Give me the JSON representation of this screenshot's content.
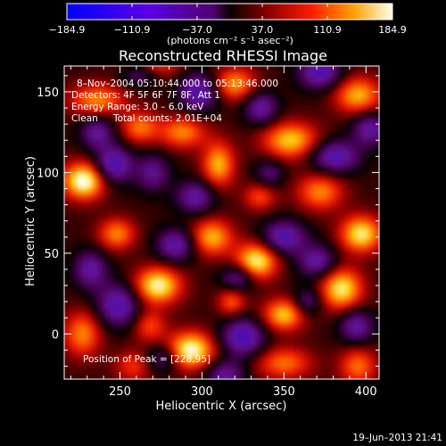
{
  "chart_data": {
    "type": "heatmap",
    "title": "Reconstructed RHESSI Image",
    "xlabel": "Heliocentric X (arcsec)",
    "ylabel": "Heliocentric Y (arcsec)",
    "xlim": [
      216,
      408
    ],
    "ylim": [
      -28,
      166
    ],
    "x_ticks": [
      250,
      300,
      350,
      400
    ],
    "y_ticks": [
      0,
      50,
      100,
      150
    ],
    "colorbar": {
      "min": -184.9,
      "max": 184.9,
      "tick_values": [
        -184.9,
        -110.9,
        -37.0,
        37.0,
        110.9,
        184.9
      ],
      "tick_labels": [
        "−184.9",
        "−110.9",
        "−37.0",
        "37.0",
        "110.9",
        "184.9"
      ],
      "units_label": "(photons cm⁻² s⁻¹ asec⁻²)"
    },
    "annotations": {
      "time_range": "8–Nov–2004 05:10:44.000 to 05:13:46.000",
      "detectors": "Detectors: 4F 5F 6F 7F 8F, Att 1",
      "energy": "Energy Range: 3.0 – 6.0 keV",
      "method": "Clean",
      "counts": "Total counts: 2.01E+04",
      "peak": "Position of Peak = [228,95]"
    },
    "footer_date": "19–Jun–2013 21:41",
    "sources": [
      {
        "x": 228,
        "y": 95,
        "sx": 9,
        "sy": 8,
        "a": 1.0
      },
      {
        "x": 293,
        "y": -10,
        "sx": 10,
        "sy": 8,
        "a": 0.95
      },
      {
        "x": 269,
        "y": 175,
        "sx": 12,
        "sy": 9,
        "a": 0.95
      },
      {
        "x": 273,
        "y": 30,
        "sx": 10,
        "sy": 8,
        "a": 0.9
      },
      {
        "x": 333,
        "y": 45,
        "sx": 9,
        "sy": 8,
        "a": 0.9
      },
      {
        "x": 385,
        "y": 28,
        "sx": 9,
        "sy": 9,
        "a": 0.85
      },
      {
        "x": 397,
        "y": 62,
        "sx": 9,
        "sy": 8,
        "a": 0.85
      },
      {
        "x": 350,
        "y": 12,
        "sx": 9,
        "sy": 7,
        "a": 0.75
      },
      {
        "x": 306,
        "y": 60,
        "sx": 9,
        "sy": 8,
        "a": 0.7
      },
      {
        "x": 310,
        "y": 105,
        "sx": 7,
        "sy": 10,
        "a": 0.7
      },
      {
        "x": 354,
        "y": 120,
        "sx": 12,
        "sy": 8,
        "a": 0.75
      },
      {
        "x": 395,
        "y": 148,
        "sx": 10,
        "sy": 8,
        "a": 0.7
      },
      {
        "x": 320,
        "y": 155,
        "sx": 9,
        "sy": 7,
        "a": 0.65
      },
      {
        "x": 248,
        "y": 62,
        "sx": 8,
        "sy": 7,
        "a": 0.6
      },
      {
        "x": 227,
        "y": 0,
        "sx": 8,
        "sy": 10,
        "a": 0.6
      },
      {
        "x": 236,
        "y": 145,
        "sx": 12,
        "sy": 7,
        "a": 0.6
      },
      {
        "x": 262,
        "y": 128,
        "sx": 8,
        "sy": 7,
        "a": 0.55
      },
      {
        "x": 372,
        "y": 88,
        "sx": 10,
        "sy": 8,
        "a": 0.6
      },
      {
        "x": 350,
        "y": -18,
        "sx": 12,
        "sy": 7,
        "a": 0.55
      },
      {
        "x": 395,
        "y": -20,
        "sx": 8,
        "sy": 8,
        "a": 0.55
      },
      {
        "x": 288,
        "y": 125,
        "sx": 10,
        "sy": 7,
        "a": 0.6
      },
      {
        "x": 268,
        "y": 5,
        "sx": 7,
        "sy": 7,
        "a": 0.45
      },
      {
        "x": 318,
        "y": 20,
        "sx": 6,
        "sy": 6,
        "a": 0.5
      },
      {
        "x": 258,
        "y": -20,
        "sx": 8,
        "sy": 7,
        "a": 0.4
      },
      {
        "x": 335,
        "y": 85,
        "sx": 7,
        "sy": 6,
        "a": 0.45
      },
      {
        "x": 249,
        "y": 18,
        "sx": 9,
        "sy": 9,
        "a": -0.7
      },
      {
        "x": 246,
        "y": 105,
        "sx": 8,
        "sy": 8,
        "a": -0.75
      },
      {
        "x": 284,
        "y": 55,
        "sx": 8,
        "sy": 7,
        "a": -0.65
      },
      {
        "x": 296,
        "y": 85,
        "sx": 8,
        "sy": 7,
        "a": -0.6
      },
      {
        "x": 325,
        "y": -2,
        "sx": 9,
        "sy": 8,
        "a": -0.75
      },
      {
        "x": 350,
        "y": 60,
        "sx": 9,
        "sy": 7,
        "a": -0.7
      },
      {
        "x": 370,
        "y": 45,
        "sx": 8,
        "sy": 7,
        "a": -0.6
      },
      {
        "x": 394,
        "y": 5,
        "sx": 7,
        "sy": 7,
        "a": -0.6
      },
      {
        "x": 381,
        "y": 110,
        "sx": 10,
        "sy": 7,
        "a": -0.7
      },
      {
        "x": 402,
        "y": 127,
        "sx": 7,
        "sy": 7,
        "a": -0.6
      },
      {
        "x": 372,
        "y": 162,
        "sx": 9,
        "sy": 7,
        "a": -0.7
      },
      {
        "x": 336,
        "y": 140,
        "sx": 7,
        "sy": 7,
        "a": -0.6
      },
      {
        "x": 298,
        "y": 150,
        "sx": 8,
        "sy": 8,
        "a": -0.7
      },
      {
        "x": 262,
        "y": 162,
        "sx": 8,
        "sy": 6,
        "a": -0.5
      },
      {
        "x": 236,
        "y": 125,
        "sx": 7,
        "sy": 7,
        "a": -0.55
      },
      {
        "x": 322,
        "y": 35,
        "sx": 7,
        "sy": 6,
        "a": -0.55
      },
      {
        "x": 232,
        "y": 40,
        "sx": 7,
        "sy": 8,
        "a": -0.6
      },
      {
        "x": 314,
        "y": -25,
        "sx": 8,
        "sy": 6,
        "a": -0.55
      },
      {
        "x": 270,
        "y": 100,
        "sx": 7,
        "sy": 8,
        "a": -0.5
      },
      {
        "x": 364,
        "y": 20,
        "sx": 6,
        "sy": 6,
        "a": -0.45
      },
      {
        "x": 276,
        "y": -15,
        "sx": 7,
        "sy": 6,
        "a": -0.45
      },
      {
        "x": 341,
        "y": 100,
        "sx": 6,
        "sy": 6,
        "a": -0.4
      }
    ]
  }
}
